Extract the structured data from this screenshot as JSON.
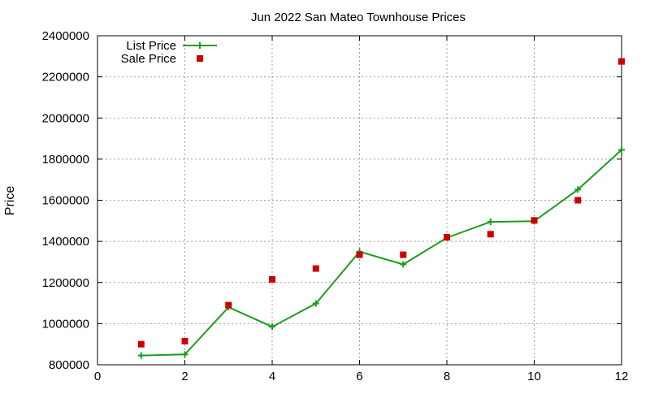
{
  "chart_data": {
    "type": "line",
    "title": "Jun 2022 San Mateo Townhouse Prices",
    "xlabel": "",
    "ylabel": "Price",
    "xlim": [
      0,
      12
    ],
    "ylim": [
      800000,
      2400000
    ],
    "xticks": [
      0,
      2,
      4,
      6,
      8,
      10,
      12
    ],
    "yticks": [
      800000,
      1000000,
      1200000,
      1400000,
      1600000,
      1800000,
      2000000,
      2200000,
      2400000
    ],
    "grid": true,
    "legend_position": "top-left",
    "series": [
      {
        "name": "List Price",
        "style": "line-plus",
        "color": "#1a9e1a",
        "x": [
          1,
          2,
          3,
          4,
          5,
          6,
          7,
          8,
          9,
          10,
          11,
          12
        ],
        "values": [
          845000,
          850000,
          1080000,
          985000,
          1098000,
          1350000,
          1288000,
          1418000,
          1495000,
          1498000,
          1652000,
          1845000
        ]
      },
      {
        "name": "Sale Price",
        "style": "square-points",
        "color": "#cc0000",
        "x": [
          1,
          2,
          3,
          4,
          5,
          6,
          7,
          8,
          9,
          10,
          11,
          12
        ],
        "values": [
          900000,
          915000,
          1090000,
          1215000,
          1268000,
          1335000,
          1335000,
          1420000,
          1435000,
          1502000,
          1600000,
          2275000
        ]
      }
    ]
  }
}
